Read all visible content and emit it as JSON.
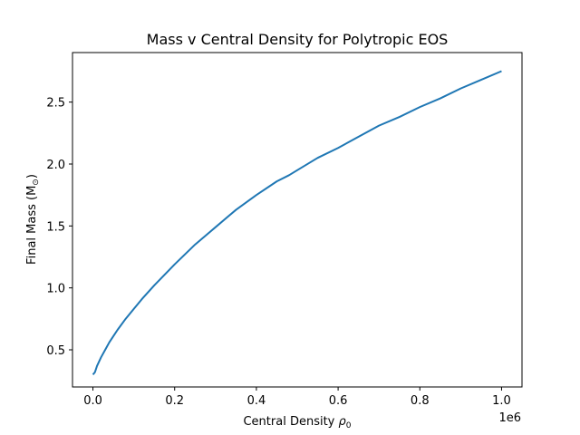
{
  "chart_data": {
    "type": "line",
    "title": "Mass v Central Density for Polytropic EOS",
    "xlabel": "Central Density",
    "xlabel_symbol": "ρ",
    "xlabel_subscript": "0",
    "ylabel": "Final Mass (M",
    "ylabel_symbol": "⊙",
    "ylabel_close": ")",
    "x_offset_label": "1e6",
    "xlim": [
      -0.05,
      1.05
    ],
    "ylim": [
      0.2,
      2.9
    ],
    "x_ticks": [
      0.0,
      0.2,
      0.4,
      0.6,
      0.8,
      1.0
    ],
    "x_tick_labels": [
      "0.0",
      "0.2",
      "0.4",
      "0.6",
      "0.8",
      "1.0"
    ],
    "y_ticks": [
      0.5,
      1.0,
      1.5,
      2.0,
      2.5
    ],
    "y_tick_labels": [
      "0.5",
      "1.0",
      "1.5",
      "2.0",
      "2.5"
    ],
    "grid": false,
    "color": "#1f77b4",
    "series": [
      {
        "values": [
          [
            0.0,
            0.3
          ],
          [
            0.005,
            0.32
          ],
          [
            0.01,
            0.37
          ],
          [
            0.02,
            0.44
          ],
          [
            0.03,
            0.5
          ],
          [
            0.04,
            0.56
          ],
          [
            0.05,
            0.61
          ],
          [
            0.06,
            0.66
          ],
          [
            0.08,
            0.75
          ],
          [
            0.1,
            0.83
          ],
          [
            0.12,
            0.91
          ],
          [
            0.15,
            1.02
          ],
          [
            0.2,
            1.19
          ],
          [
            0.25,
            1.35
          ],
          [
            0.3,
            1.49
          ],
          [
            0.35,
            1.63
          ],
          [
            0.4,
            1.75
          ],
          [
            0.45,
            1.86
          ],
          [
            0.48,
            1.91
          ],
          [
            0.5,
            1.95
          ],
          [
            0.55,
            2.05
          ],
          [
            0.6,
            2.13
          ],
          [
            0.65,
            2.22
          ],
          [
            0.7,
            2.31
          ],
          [
            0.75,
            2.38
          ],
          [
            0.8,
            2.46
          ],
          [
            0.85,
            2.53
          ],
          [
            0.9,
            2.61
          ],
          [
            0.95,
            2.68
          ],
          [
            1.0,
            2.75
          ]
        ]
      }
    ]
  }
}
